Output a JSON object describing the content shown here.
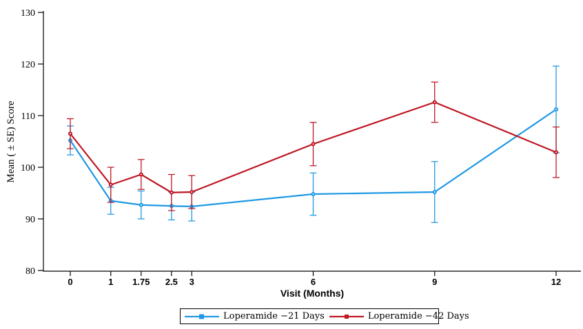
{
  "figure": {
    "background": "#FFFFFF",
    "axis_color": "#000000"
  },
  "chart_data": {
    "type": "line",
    "title": "",
    "xlabel": "Visit (Months)",
    "ylabel": "Mean ( ± SE) Score",
    "x": [
      0,
      1,
      1.75,
      2.5,
      3,
      6,
      9,
      12
    ],
    "x_tick_labels": [
      "0",
      "1",
      "1.75",
      "2.5",
      "3",
      "6",
      "9",
      "12"
    ],
    "y_ticks": [
      80,
      90,
      100,
      110,
      120,
      130
    ],
    "ylim": [
      80,
      130
    ],
    "grid": false,
    "error_bars": "±SE",
    "legend_position": "bottom-center",
    "series": [
      {
        "name": "Loperamide −21 Days",
        "color": "#1E98E4",
        "marker": "square",
        "values": [
          105.2,
          93.5,
          92.7,
          92.5,
          92.4,
          94.8,
          95.2,
          111.2
        ],
        "se": [
          2.8,
          2.6,
          2.7,
          2.7,
          2.8,
          4.1,
          5.9,
          8.4
        ]
      },
      {
        "name": "Loperamide −42 Days",
        "color": "#BE1622",
        "marker": "circle",
        "values": [
          106.5,
          96.6,
          98.6,
          95.1,
          95.2,
          104.5,
          112.6,
          102.9
        ],
        "se": [
          2.9,
          3.4,
          2.9,
          3.5,
          3.2,
          4.2,
          3.9,
          4.9
        ]
      }
    ]
  }
}
